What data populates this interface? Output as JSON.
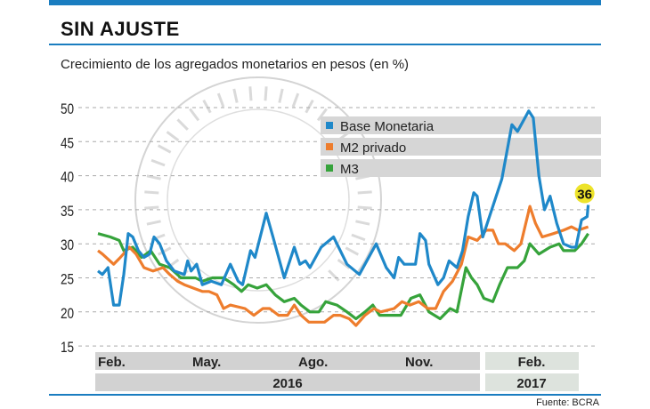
{
  "header": {
    "title": "SIN AJUSTE",
    "subtitle": "Crecimiento de los agregados monetarios en pesos (en %)"
  },
  "source": "Fuente: BCRA",
  "watermark": "BANCO CENTRAL DE LA REPUBLICA ARGENTINA",
  "colors": {
    "accent": "#1a7dc0",
    "Base Monetaria": "#1f88c9",
    "M2 privado": "#ee7d2d",
    "M3": "#36a33b",
    "band": "#d2d2d2",
    "band2017": "#dde3dd",
    "highlight": "#ede32a"
  },
  "chart_data": {
    "type": "line",
    "title": "Crecimiento de los agregados monetarios en pesos (en %)",
    "ylim": [
      15,
      50
    ],
    "yticks": [
      15,
      20,
      25,
      30,
      35,
      40,
      45,
      50
    ],
    "grid": true,
    "legend": "top-right",
    "x_tick_labels": [
      "Feb.",
      "May.",
      "Ago.",
      "Nov.",
      "Feb."
    ],
    "x_year_labels": [
      "2016",
      "2017"
    ],
    "annotation": {
      "series": "Base Monetaria",
      "label": "36"
    },
    "series": [
      {
        "name": "Base Monetaria",
        "points": [
          [
            "2016-02-01",
            26
          ],
          [
            "2016-02-05",
            25.5
          ],
          [
            "2016-02-10",
            26.5
          ],
          [
            "2016-02-15",
            21
          ],
          [
            "2016-02-20",
            21
          ],
          [
            "2016-02-24",
            25.5
          ],
          [
            "2016-02-28",
            31.5
          ],
          [
            "2016-03-03",
            31
          ],
          [
            "2016-03-08",
            29
          ],
          [
            "2016-03-13",
            28
          ],
          [
            "2016-03-18",
            28.5
          ],
          [
            "2016-03-22",
            31
          ],
          [
            "2016-03-27",
            30
          ],
          [
            "2016-04-02",
            27.5
          ],
          [
            "2016-04-09",
            26
          ],
          [
            "2016-04-18",
            25.5
          ],
          [
            "2016-04-21",
            27.5
          ],
          [
            "2016-04-24",
            26
          ],
          [
            "2016-04-29",
            27
          ],
          [
            "2016-05-04",
            24
          ],
          [
            "2016-05-12",
            24.5
          ],
          [
            "2016-05-21",
            24
          ],
          [
            "2016-05-29",
            27
          ],
          [
            "2016-06-05",
            24.5
          ],
          [
            "2016-06-09",
            24
          ],
          [
            "2016-06-16",
            29
          ],
          [
            "2016-06-20",
            28
          ],
          [
            "2016-06-30",
            34.5
          ],
          [
            "2016-07-06",
            31
          ],
          [
            "2016-07-16",
            25
          ],
          [
            "2016-07-25",
            29.5
          ],
          [
            "2016-07-30",
            27
          ],
          [
            "2016-08-04",
            27.5
          ],
          [
            "2016-08-08",
            26.5
          ],
          [
            "2016-08-18",
            29.5
          ],
          [
            "2016-08-29",
            31
          ],
          [
            "2016-09-04",
            29
          ],
          [
            "2016-09-10",
            27
          ],
          [
            "2016-09-21",
            25.5
          ],
          [
            "2016-10-01",
            28.5
          ],
          [
            "2016-10-06",
            30
          ],
          [
            "2016-10-15",
            26.5
          ],
          [
            "2016-10-22",
            25
          ],
          [
            "2016-10-26",
            28
          ],
          [
            "2016-10-31",
            27
          ],
          [
            "2016-11-10",
            27
          ],
          [
            "2016-11-14",
            31.5
          ],
          [
            "2016-11-19",
            30.5
          ],
          [
            "2016-11-22",
            27
          ],
          [
            "2016-11-30",
            24
          ],
          [
            "2016-12-05",
            25
          ],
          [
            "2016-12-10",
            27.5
          ],
          [
            "2016-12-17",
            26.5
          ],
          [
            "2016-12-22",
            29
          ],
          [
            "2016-12-27",
            34
          ],
          [
            "2017-01-01",
            37.5
          ],
          [
            "2017-01-04",
            37
          ],
          [
            "2017-01-09",
            31
          ],
          [
            "2017-01-15",
            34
          ],
          [
            "2017-01-26",
            39.5
          ],
          [
            "2017-02-04",
            47.5
          ],
          [
            "2017-02-09",
            46.5
          ],
          [
            "2017-02-19",
            49.5
          ],
          [
            "2017-02-23",
            48.5
          ],
          [
            "2017-02-28",
            40
          ],
          [
            "2017-03-05",
            35
          ],
          [
            "2017-03-10",
            37
          ],
          [
            "2017-03-16",
            33
          ],
          [
            "2017-03-22",
            30
          ],
          [
            "2017-03-29",
            29.5
          ],
          [
            "2017-04-02",
            29.5
          ],
          [
            "2017-04-07",
            33.5
          ],
          [
            "2017-04-12",
            34
          ],
          [
            "2017-04-13",
            35.7
          ]
        ]
      },
      {
        "name": "M2 privado",
        "points": [
          [
            "2016-02-01",
            29
          ],
          [
            "2016-02-05",
            28.5
          ],
          [
            "2016-02-15",
            27
          ],
          [
            "2016-02-21",
            28
          ],
          [
            "2016-02-29",
            29.5
          ],
          [
            "2016-03-06",
            28.5
          ],
          [
            "2016-03-13",
            26.5
          ],
          [
            "2016-03-21",
            26
          ],
          [
            "2016-03-30",
            26.5
          ],
          [
            "2016-04-05",
            25.5
          ],
          [
            "2016-04-12",
            24.5
          ],
          [
            "2016-04-18",
            24
          ],
          [
            "2016-04-26",
            23.5
          ],
          [
            "2016-05-04",
            23
          ],
          [
            "2016-05-10",
            23
          ],
          [
            "2016-05-17",
            22.5
          ],
          [
            "2016-05-23",
            20.5
          ],
          [
            "2016-05-29",
            21
          ],
          [
            "2016-06-11",
            20.5
          ],
          [
            "2016-06-19",
            19.5
          ],
          [
            "2016-06-27",
            20.5
          ],
          [
            "2016-07-03",
            20.5
          ],
          [
            "2016-07-11",
            19.5
          ],
          [
            "2016-07-19",
            19.5
          ],
          [
            "2016-07-25",
            21
          ],
          [
            "2016-07-31",
            19.5
          ],
          [
            "2016-08-07",
            18.5
          ],
          [
            "2016-08-15",
            18.5
          ],
          [
            "2016-08-21",
            18.5
          ],
          [
            "2016-08-29",
            19.5
          ],
          [
            "2016-09-04",
            19.5
          ],
          [
            "2016-09-12",
            19
          ],
          [
            "2016-09-18",
            18
          ],
          [
            "2016-09-26",
            19.5
          ],
          [
            "2016-10-04",
            20.5
          ],
          [
            "2016-10-10",
            20
          ],
          [
            "2016-10-22",
            20.5
          ],
          [
            "2016-10-29",
            21.5
          ],
          [
            "2016-11-05",
            21
          ],
          [
            "2016-11-13",
            21.5
          ],
          [
            "2016-11-21",
            20.5
          ],
          [
            "2016-11-28",
            20.5
          ],
          [
            "2016-12-05",
            23
          ],
          [
            "2016-12-13",
            24.5
          ],
          [
            "2016-12-21",
            27
          ],
          [
            "2016-12-27",
            31
          ],
          [
            "2017-01-04",
            30.5
          ],
          [
            "2017-01-12",
            32
          ],
          [
            "2017-01-18",
            32
          ],
          [
            "2017-01-23",
            30
          ],
          [
            "2017-01-29",
            30
          ],
          [
            "2017-02-06",
            29
          ],
          [
            "2017-02-12",
            30
          ],
          [
            "2017-02-20",
            35.5
          ],
          [
            "2017-02-25",
            33
          ],
          [
            "2017-03-03",
            31
          ],
          [
            "2017-03-13",
            31.5
          ],
          [
            "2017-03-22",
            32
          ],
          [
            "2017-03-29",
            32.5
          ],
          [
            "2017-04-04",
            32
          ],
          [
            "2017-04-13",
            32.5
          ]
        ]
      },
      {
        "name": "M3",
        "points": [
          [
            "2016-02-01",
            31.5
          ],
          [
            "2016-02-12",
            31
          ],
          [
            "2016-02-20",
            30.5
          ],
          [
            "2016-02-24",
            29
          ],
          [
            "2016-03-03",
            29.5
          ],
          [
            "2016-03-11",
            28
          ],
          [
            "2016-03-19",
            29
          ],
          [
            "2016-03-27",
            27
          ],
          [
            "2016-04-05",
            26.5
          ],
          [
            "2016-04-15",
            25
          ],
          [
            "2016-04-28",
            25
          ],
          [
            "2016-05-04",
            24.5
          ],
          [
            "2016-05-13",
            25
          ],
          [
            "2016-05-23",
            25
          ],
          [
            "2016-06-01",
            24
          ],
          [
            "2016-06-08",
            23
          ],
          [
            "2016-06-14",
            24
          ],
          [
            "2016-06-22",
            23.5
          ],
          [
            "2016-06-30",
            24
          ],
          [
            "2016-07-08",
            22.5
          ],
          [
            "2016-07-16",
            21.5
          ],
          [
            "2016-07-25",
            22
          ],
          [
            "2016-07-31",
            21
          ],
          [
            "2016-08-08",
            20
          ],
          [
            "2016-08-16",
            20
          ],
          [
            "2016-08-22",
            21.5
          ],
          [
            "2016-09-01",
            21
          ],
          [
            "2016-09-10",
            20
          ],
          [
            "2016-09-18",
            19
          ],
          [
            "2016-09-26",
            20
          ],
          [
            "2016-10-03",
            21
          ],
          [
            "2016-10-09",
            19.5
          ],
          [
            "2016-10-18",
            19.5
          ],
          [
            "2016-10-28",
            19.5
          ],
          [
            "2016-11-06",
            22
          ],
          [
            "2016-11-14",
            22.5
          ],
          [
            "2016-11-22",
            20
          ],
          [
            "2016-12-02",
            19
          ],
          [
            "2016-12-11",
            20.5
          ],
          [
            "2016-12-17",
            20
          ],
          [
            "2016-12-25",
            26.5
          ],
          [
            "2016-12-30",
            25
          ],
          [
            "2017-01-04",
            24
          ],
          [
            "2017-01-10",
            22
          ],
          [
            "2017-01-18",
            21.5
          ],
          [
            "2017-01-24",
            24
          ],
          [
            "2017-01-31",
            26.5
          ],
          [
            "2017-02-09",
            26.5
          ],
          [
            "2017-02-15",
            27.5
          ],
          [
            "2017-02-20",
            30
          ],
          [
            "2017-02-28",
            28.5
          ],
          [
            "2017-03-10",
            29.5
          ],
          [
            "2017-03-18",
            30
          ],
          [
            "2017-03-22",
            29
          ],
          [
            "2017-04-01",
            29
          ],
          [
            "2017-04-07",
            30
          ],
          [
            "2017-04-13",
            31.5
          ]
        ]
      }
    ]
  }
}
